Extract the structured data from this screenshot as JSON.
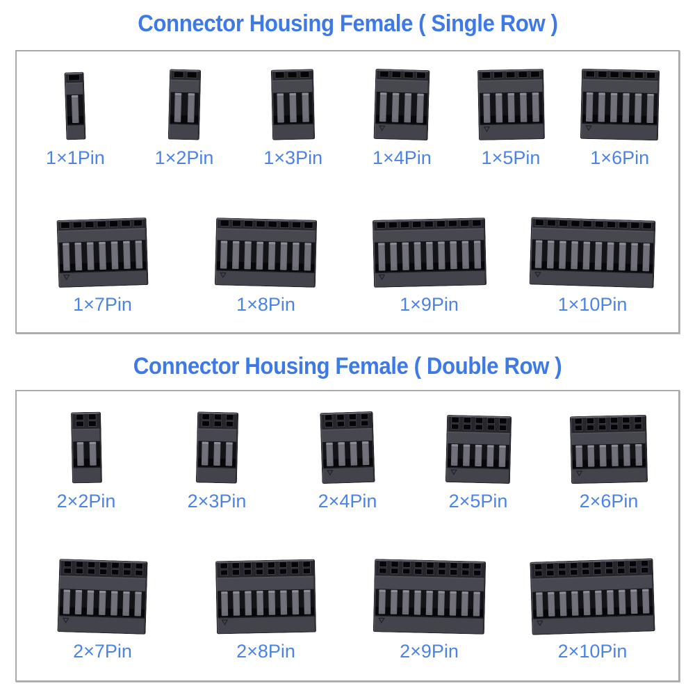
{
  "page": {
    "background": "#ffffff",
    "title_color": "#3d7ae8",
    "label_color": "#4b83e6",
    "panel_border_color": "#a9a9a9",
    "connector_colors": {
      "body": "#47474f",
      "top": "#26262c",
      "holes": "#050507",
      "ribs": "#6b6b74",
      "cavity": "#131318",
      "base": "#43434b"
    }
  },
  "sections": [
    {
      "id": "single-row",
      "title": "Connector Housing Female ( Single Row )",
      "rows": [
        [
          {
            "label": "1×1Pin",
            "pin_rows": 1,
            "pins": 1
          },
          {
            "label": "1×2Pin",
            "pin_rows": 1,
            "pins": 2
          },
          {
            "label": "1×3Pin",
            "pin_rows": 1,
            "pins": 3
          },
          {
            "label": "1×4Pin",
            "pin_rows": 1,
            "pins": 4
          },
          {
            "label": "1×5Pin",
            "pin_rows": 1,
            "pins": 5
          },
          {
            "label": "1×6Pin",
            "pin_rows": 1,
            "pins": 6
          }
        ],
        [
          {
            "label": "1×7Pin",
            "pin_rows": 1,
            "pins": 7
          },
          {
            "label": "1×8Pin",
            "pin_rows": 1,
            "pins": 8
          },
          {
            "label": "1×9Pin",
            "pin_rows": 1,
            "pins": 9
          },
          {
            "label": "1×10Pin",
            "pin_rows": 1,
            "pins": 10
          }
        ]
      ]
    },
    {
      "id": "double-row",
      "title": "Connector Housing Female ( Double Row )",
      "rows": [
        [
          {
            "label": "2×2Pin",
            "pin_rows": 2,
            "pins": 2
          },
          {
            "label": "2×3Pin",
            "pin_rows": 2,
            "pins": 3
          },
          {
            "label": "2×4Pin",
            "pin_rows": 2,
            "pins": 4
          },
          {
            "label": "2×5Pin",
            "pin_rows": 2,
            "pins": 5
          },
          {
            "label": "2×6Pin",
            "pin_rows": 2,
            "pins": 6
          }
        ],
        [
          {
            "label": "2×7Pin",
            "pin_rows": 2,
            "pins": 7
          },
          {
            "label": "2×8Pin",
            "pin_rows": 2,
            "pins": 8
          },
          {
            "label": "2×9Pin",
            "pin_rows": 2,
            "pins": 9
          },
          {
            "label": "2×10Pin",
            "pin_rows": 2,
            "pins": 10
          }
        ]
      ]
    }
  ]
}
